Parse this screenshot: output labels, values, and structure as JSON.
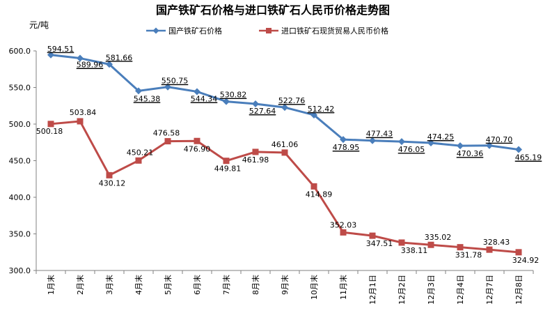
{
  "chart_data": {
    "type": "line",
    "title": "国产铁矿石价格与进口铁矿石人民币价格走势图",
    "ylabel": "元/吨",
    "xlabel": "",
    "ylim": [
      300,
      600
    ],
    "yticks": [
      "300.0",
      "350.0",
      "400.0",
      "450.0",
      "500.0",
      "550.0",
      "600.0"
    ],
    "categories": [
      "1月末",
      "2月末",
      "3月末",
      "4月末",
      "5月末",
      "6月末",
      "7月末",
      "8月末",
      "9月末",
      "10月末",
      "11月末",
      "12月1日",
      "12月2日",
      "12月3日",
      "12月4日",
      "12月7日",
      "12月8日"
    ],
    "grid": false,
    "legend": "top-right",
    "series": [
      {
        "name": "国产铁矿石价格",
        "color": "#4a7ebb",
        "marker": "diamond",
        "values": [
          594.51,
          589.96,
          581.66,
          545.38,
          550.75,
          544.34,
          530.82,
          527.64,
          522.76,
          512.42,
          478.95,
          477.43,
          476.05,
          474.25,
          470.36,
          470.7,
          465.19
        ],
        "labels": [
          "594.51",
          "589.96",
          "581.66",
          "545.38",
          "550.75",
          "544.34",
          "530.82",
          "527.64",
          "522.76",
          "512.42",
          "478.95",
          "477.43",
          "476.05",
          "474.25",
          "470.36",
          "470.70",
          "465.19"
        ]
      },
      {
        "name": "进口铁矿石现货贸易人民币价格",
        "color": "#be4b48",
        "marker": "square",
        "values": [
          500.18,
          503.84,
          430.12,
          450.21,
          476.58,
          476.9,
          449.81,
          461.98,
          461.06,
          414.89,
          352.03,
          347.51,
          338.11,
          335.02,
          331.78,
          328.43,
          324.92
        ],
        "labels": [
          "500.18",
          "503.84",
          "430.12",
          "450.21",
          "476.58",
          "476.90",
          "449.81",
          "461.98",
          "461.06",
          "414.89",
          "352.03",
          "347.51",
          "338.11",
          "335.02",
          "331.78",
          "328.43",
          "324.92"
        ]
      }
    ]
  }
}
